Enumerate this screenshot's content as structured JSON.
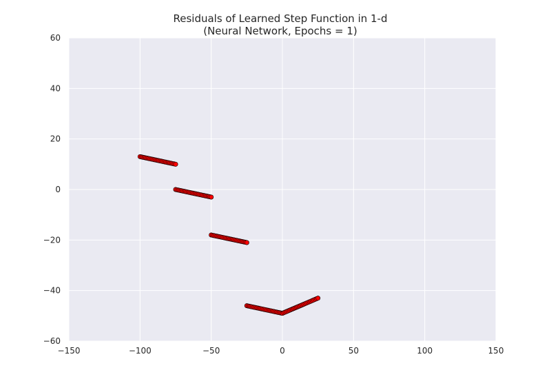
{
  "chart_data": {
    "type": "scatter",
    "title": "Residuals of Learned Step Function in 1-d",
    "subtitle": "(Neural Network, Epochs = 1)",
    "xlabel": "",
    "ylabel": "",
    "xlim": [
      -150,
      150
    ],
    "ylim": [
      -60,
      60
    ],
    "x_ticks": [
      -150,
      -100,
      -50,
      0,
      50,
      100,
      150
    ],
    "x_tick_labels": [
      "−150",
      "−100",
      "−50",
      "0",
      "50",
      "100",
      "150"
    ],
    "y_ticks": [
      -60,
      -40,
      -20,
      0,
      20,
      40,
      60
    ],
    "y_tick_labels": [
      "−60",
      "−40",
      "−20",
      "0",
      "20",
      "40",
      "60"
    ],
    "grid": true,
    "colors": {
      "plot_background": "#eaeaf2",
      "grid": "#ffffff",
      "marker_fill": "#ff0000",
      "marker_edge": "#000000",
      "text": "#262626"
    },
    "segments": [
      {
        "x_start": -100,
        "x_end": -75,
        "y_start": 13,
        "y_end": 10,
        "n_points": 26
      },
      {
        "x_start": -75,
        "x_end": -50,
        "y_start": 0,
        "y_end": -3,
        "n_points": 26
      },
      {
        "x_start": -50,
        "x_end": -25,
        "y_start": -18,
        "y_end": -21,
        "n_points": 26
      },
      {
        "x_start": -25,
        "x_end": 0,
        "y_start": -46,
        "y_end": -49,
        "n_points": 26
      },
      {
        "x_start": 0,
        "x_end": 25,
        "y_start": -49,
        "y_end": -43,
        "n_points": 26
      }
    ]
  }
}
